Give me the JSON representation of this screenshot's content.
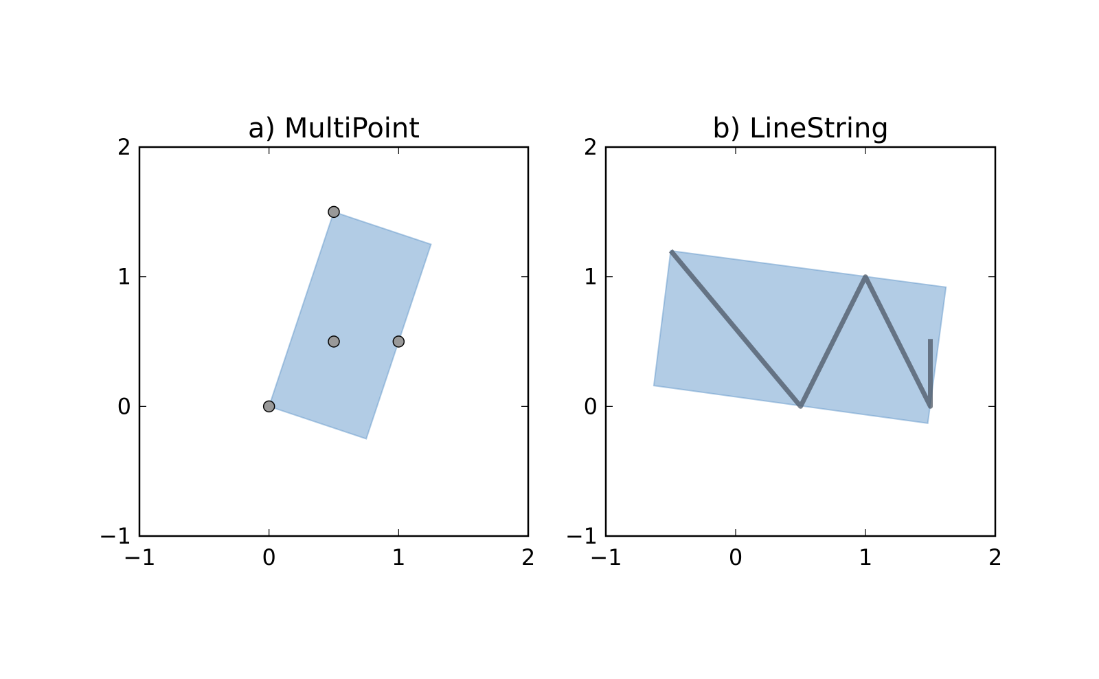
{
  "chart_data": [
    {
      "type": "scatter",
      "title": "a) MultiPoint",
      "xlim": [
        -1,
        2
      ],
      "ylim": [
        -1,
        2
      ],
      "xticks": [
        -1,
        0,
        1,
        2
      ],
      "yticks": [
        -1,
        0,
        1,
        2
      ],
      "xtick_labels": [
        "−1",
        "0",
        "1",
        "2"
      ],
      "ytick_labels": [
        "−1",
        "0",
        "1",
        "2"
      ],
      "grid": false,
      "points": [
        [
          0,
          0
        ],
        [
          0.5,
          1.5
        ],
        [
          0.5,
          0.5
        ],
        [
          1,
          0.5
        ]
      ],
      "polygon": [
        [
          0,
          0
        ],
        [
          0.5,
          1.5
        ],
        [
          1.25,
          1.25
        ],
        [
          0.75,
          -0.25
        ]
      ],
      "colors": {
        "polygon_fill": "#6699cc",
        "polygon_edge": "#6699cc",
        "point_fill": "#999999",
        "point_edge": "#000000"
      }
    },
    {
      "type": "line",
      "title": "b) LineString",
      "xlim": [
        -1,
        2
      ],
      "ylim": [
        -1,
        2
      ],
      "xticks": [
        -1,
        0,
        1,
        2
      ],
      "yticks": [
        -1,
        0,
        1,
        2
      ],
      "xtick_labels": [
        "−1",
        "0",
        "1",
        "2"
      ],
      "ytick_labels": [
        "−1",
        "0",
        "1",
        "2"
      ],
      "grid": false,
      "line": [
        [
          -0.5,
          1.2
        ],
        [
          0.5,
          0
        ],
        [
          1,
          1
        ],
        [
          1.5,
          0
        ],
        [
          1.5,
          0.52
        ]
      ],
      "polygon": [
        [
          -0.5,
          1.2
        ],
        [
          1.62,
          0.92
        ],
        [
          1.48,
          -0.13
        ],
        [
          -0.63,
          0.16
        ]
      ],
      "colors": {
        "polygon_fill": "#6699cc",
        "polygon_edge": "#6699cc",
        "line": "#4b5563"
      }
    }
  ]
}
